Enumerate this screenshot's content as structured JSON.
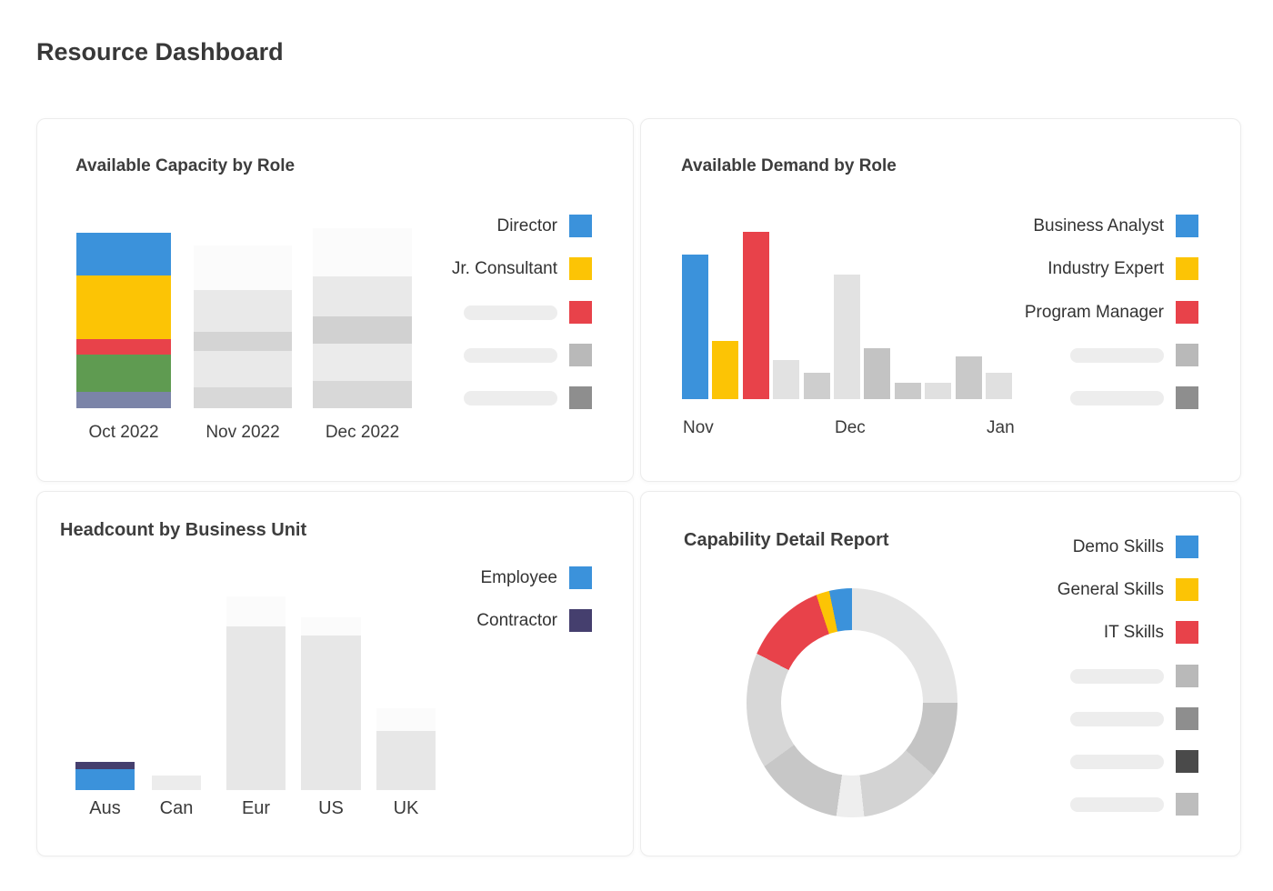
{
  "page": {
    "title": "Resource Dashboard"
  },
  "colors": {
    "blue": "#3b92db",
    "yellow": "#fcc405",
    "red": "#e8424a",
    "green": "#5f9b51",
    "slate": "#7b84a8",
    "navy": "#453f6e",
    "panel_border": "#ececec",
    "placeholder_pill": "#ededed",
    "text": "#3a3a3a"
  },
  "panels": {
    "capacity": {
      "title": "Available Capacity by Role"
    },
    "demand": {
      "title": "Available Demand by Role"
    },
    "headcount": {
      "title": "Headcount by Business Unit"
    },
    "capability": {
      "title": "Capability Detail Report"
    }
  },
  "chart_data": [
    {
      "id": "capacity",
      "type": "bar",
      "stacked": true,
      "title": "Available Capacity by Role",
      "categories": [
        "Oct 2022",
        "Nov 2022",
        "Dec 2022"
      ],
      "value_axis": "none shown; values are bar-segment heights in px; gray segments are loading skeletons",
      "bars": [
        {
          "category": "Oct 2022",
          "segments_top_to_bottom": [
            {
              "series": "Director",
              "color": "#3b92db",
              "value": 47
            },
            {
              "series": "Jr. Consultant",
              "color": "#fcc405",
              "value": 70
            },
            {
              "series": "(loading)",
              "color": "#e8424a",
              "value": 17
            },
            {
              "series": "(loading)",
              "color": "#5f9b51",
              "value": 41
            },
            {
              "series": "(loading)",
              "color": "#7b84a8",
              "value": 18
            }
          ]
        },
        {
          "category": "Nov 2022",
          "segments_top_to_bottom": [
            {
              "series": "(loading)",
              "color": "#fbfbfb",
              "value": 49
            },
            {
              "series": "(loading)",
              "color": "#e9e9e9",
              "value": 46
            },
            {
              "series": "(loading)",
              "color": "#d4d4d4",
              "value": 21
            },
            {
              "series": "(loading)",
              "color": "#e9e9e9",
              "value": 40
            },
            {
              "series": "(loading)",
              "color": "#d8d8d8",
              "value": 23
            }
          ]
        },
        {
          "category": "Dec 2022",
          "segments_top_to_bottom": [
            {
              "series": "(loading)",
              "color": "#fbfbfb",
              "value": 53
            },
            {
              "series": "(loading)",
              "color": "#e9e9e9",
              "value": 44
            },
            {
              "series": "(loading)",
              "color": "#d1d1d1",
              "value": 30
            },
            {
              "series": "(loading)",
              "color": "#ebebeb",
              "value": 41
            },
            {
              "series": "(loading)",
              "color": "#d8d8d8",
              "value": 30
            }
          ]
        }
      ],
      "legend": [
        {
          "label": "Director",
          "color": "#3b92db"
        },
        {
          "label": "Jr. Consultant",
          "color": "#fcc405"
        },
        {
          "label": "",
          "placeholder": true,
          "color": "#e8424a"
        },
        {
          "label": "",
          "placeholder": true,
          "color": "#b9b9b9"
        },
        {
          "label": "",
          "placeholder": true,
          "color": "#8e8e8e"
        }
      ]
    },
    {
      "id": "demand",
      "type": "bar",
      "stacked": false,
      "title": "Available Demand by Role",
      "categories": [
        "Nov",
        "Dec",
        "Jan"
      ],
      "value_axis": "none shown; values are bar heights in px; gray bars are loading skeletons",
      "bars": [
        {
          "series": "Business Analyst",
          "color": "#3b92db",
          "value": 159
        },
        {
          "series": "Industry Expert",
          "color": "#fcc405",
          "value": 64
        },
        {
          "series": "Program Manager",
          "color": "#e8424a",
          "value": 184
        },
        {
          "series": "(loading)",
          "color": "#e2e2e2",
          "value": 43
        },
        {
          "series": "(loading)",
          "color": "#cecece",
          "value": 29
        },
        {
          "series": "(loading)",
          "color": "#e2e2e2",
          "value": 137
        },
        {
          "series": "(loading)",
          "color": "#c3c3c3",
          "value": 56
        },
        {
          "series": "(loading)",
          "color": "#cacaca",
          "value": 18
        },
        {
          "series": "(loading)",
          "color": "#e0e0e0",
          "value": 18
        },
        {
          "series": "(loading)",
          "color": "#c9c9c9",
          "value": 47
        },
        {
          "series": "(loading)",
          "color": "#e0e0e0",
          "value": 29
        }
      ],
      "axis_labels": [
        {
          "text": "Nov",
          "bar_index": 0
        },
        {
          "text": "Dec",
          "bar_index": 5
        },
        {
          "text": "Jan",
          "bar_index": 10
        }
      ],
      "legend": [
        {
          "label": "Business Analyst",
          "color": "#3b92db"
        },
        {
          "label": "Industry Expert",
          "color": "#fcc405"
        },
        {
          "label": "Program Manager",
          "color": "#e8424a"
        },
        {
          "label": "",
          "placeholder": true,
          "color": "#b9b9b9"
        },
        {
          "label": "",
          "placeholder": true,
          "color": "#8e8e8e"
        }
      ]
    },
    {
      "id": "headcount",
      "type": "bar",
      "stacked": true,
      "title": "Headcount by Business Unit",
      "categories": [
        "Aus",
        "Can",
        "Eur",
        "US",
        "UK"
      ],
      "value_axis": "none shown; values are bar-segment heights in px; gray segments are loading skeletons",
      "bars": [
        {
          "category": "Aus",
          "segments_top_to_bottom": [
            {
              "series": "Contractor",
              "color": "#453f6e",
              "value": 8
            },
            {
              "series": "Employee",
              "color": "#3b92db",
              "value": 23
            }
          ]
        },
        {
          "category": "Can",
          "segments_top_to_bottom": [
            {
              "series": "(loading)",
              "color": "#ececec",
              "value": 16
            }
          ]
        },
        {
          "category": "Eur",
          "segments_top_to_bottom": [
            {
              "series": "(loading)",
              "color": "#fbfbfb",
              "value": 33
            },
            {
              "series": "(loading)",
              "color": "#e7e7e7",
              "value": 180
            }
          ]
        },
        {
          "category": "US",
          "segments_top_to_bottom": [
            {
              "series": "(loading)",
              "color": "#fbfbfb",
              "value": 20
            },
            {
              "series": "(loading)",
              "color": "#e7e7e7",
              "value": 170
            }
          ]
        },
        {
          "category": "UK",
          "segments_top_to_bottom": [
            {
              "series": "(loading)",
              "color": "#fbfbfb",
              "value": 25
            },
            {
              "series": "(loading)",
              "color": "#e7e7e7",
              "value": 65
            }
          ]
        }
      ],
      "legend": [
        {
          "label": "Employee",
          "color": "#3b92db"
        },
        {
          "label": "Contractor",
          "color": "#453f6e"
        }
      ]
    },
    {
      "id": "capability",
      "type": "pie",
      "donut": true,
      "title": "Capability Detail Report",
      "slices_clockwise_from_top": [
        {
          "label": "(loading)",
          "color": "#e5e5e5",
          "pct": 25.0
        },
        {
          "label": "(loading)",
          "color": "#c4c4c4",
          "pct": 11.5
        },
        {
          "label": "(loading)",
          "color": "#d3d3d3",
          "pct": 11.8
        },
        {
          "label": "(loading)",
          "color": "#eeeeee",
          "pct": 3.9
        },
        {
          "label": "(loading)",
          "color": "#c7c7c7",
          "pct": 12.8
        },
        {
          "label": "(loading)",
          "color": "#d7d7d7",
          "pct": 17.6
        },
        {
          "label": "IT Skills",
          "color": "#e8424a",
          "pct": 12.3
        },
        {
          "label": "General Skills",
          "color": "#fcc405",
          "pct": 1.9
        },
        {
          "label": "Demo Skills",
          "color": "#3b92db",
          "pct": 3.2
        }
      ],
      "legend": [
        {
          "label": "Demo Skills",
          "color": "#3b92db"
        },
        {
          "label": "General Skills",
          "color": "#fcc405"
        },
        {
          "label": "IT Skills",
          "color": "#e8424a"
        },
        {
          "label": "",
          "placeholder": true,
          "color": "#b9b9b9"
        },
        {
          "label": "",
          "placeholder": true,
          "color": "#8e8e8e"
        },
        {
          "label": "",
          "placeholder": true,
          "color": "#4a4a4a"
        },
        {
          "label": "",
          "placeholder": true,
          "color": "#bdbdbd"
        }
      ]
    }
  ]
}
